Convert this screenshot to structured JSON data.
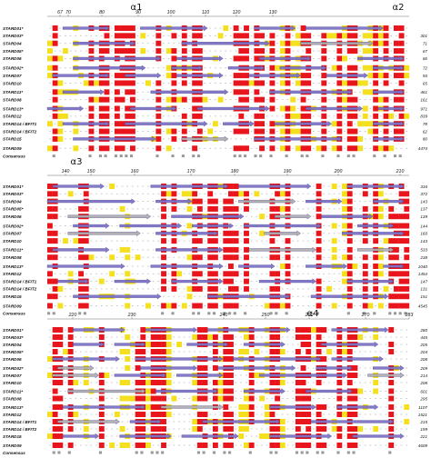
{
  "colors": {
    "identical": "#e8161c",
    "similar": "#f4e01e",
    "strand": "#7e74c8",
    "strand_edge": "#3d3584",
    "coil": "#b0b0b0",
    "text": "#111111"
  },
  "blocks": [
    {
      "ruler": [
        "67",
        "70",
        "80",
        "90",
        "100",
        "110",
        "120",
        "130"
      ],
      "helices": [
        "α1",
        "α2"
      ],
      "rows": [
        {
          "name": "STARD01*",
          "end": ""
        },
        {
          "name": "STARD03*",
          "end": "301"
        },
        {
          "name": "STARD04",
          "end": "71"
        },
        {
          "name": "STARD05*",
          "end": "67"
        },
        {
          "name": "STARD06",
          "end": "66"
        },
        {
          "name": "STARD02*",
          "end": "72"
        },
        {
          "name": "STARD07",
          "end": "93"
        },
        {
          "name": "STARD10",
          "end": "65"
        },
        {
          "name": "STARD11*",
          "end": "461"
        },
        {
          "name": "STARD08",
          "end": "161"
        },
        {
          "name": "STARD13*",
          "end": "971"
        },
        {
          "name": "STARD12",
          "end": "839"
        },
        {
          "name": "STARD14 / BFIT1",
          "end": "78"
        },
        {
          "name": "STARD14 / BFIT2",
          "end": "62"
        },
        {
          "name": "STARD15",
          "end": "80"
        },
        {
          "name": "STARD09",
          "end": "4474"
        },
        {
          "name": "Consensus",
          "end": ""
        }
      ]
    },
    {
      "ruler": [
        "140",
        "150",
        "160",
        "170",
        "180",
        "190",
        "200",
        "210"
      ],
      "helices": [
        "α3"
      ],
      "rows": [
        {
          "name": "STARD01*",
          "end": "316"
        },
        {
          "name": "STARD03*",
          "end": "372"
        },
        {
          "name": "STARD04",
          "end": "143"
        },
        {
          "name": "STARD05*",
          "end": "137"
        },
        {
          "name": "STARD06",
          "end": "139"
        },
        {
          "name": "STARD02*",
          "end": "144"
        },
        {
          "name": "STARD07",
          "end": "160"
        },
        {
          "name": "STARD10",
          "end": "143"
        },
        {
          "name": "STARD11*",
          "end": "533"
        },
        {
          "name": "STARD08",
          "end": "238"
        },
        {
          "name": "STARD13*",
          "end": "1040"
        },
        {
          "name": "STARD12",
          "end": "1454"
        },
        {
          "name": "STARD14 / BFIT1",
          "end": "147"
        },
        {
          "name": "STARD14 / BFIT2",
          "end": "131"
        },
        {
          "name": "STARD15",
          "end": "151"
        },
        {
          "name": "STARD09",
          "end": "4545"
        },
        {
          "name": "Consensus",
          "end": ""
        }
      ]
    },
    {
      "ruler": [
        "220",
        "230",
        "240",
        "250",
        "260",
        "270",
        "283"
      ],
      "helices": [
        "α4"
      ],
      "rows": [
        {
          "name": "STARD01*",
          "end": "280"
        },
        {
          "name": "STARD03*",
          "end": "445"
        },
        {
          "name": "STARD04",
          "end": "205"
        },
        {
          "name": "STARD05*",
          "end": "204"
        },
        {
          "name": "STARD06",
          "end": "208"
        },
        {
          "name": "STARD02*",
          "end": "209"
        },
        {
          "name": "STARD07",
          "end": "214"
        },
        {
          "name": "STARD10",
          "end": "208"
        },
        {
          "name": "STARD11*",
          "end": "601"
        },
        {
          "name": "STARD08",
          "end": "295"
        },
        {
          "name": "STARD13*",
          "end": "1107"
        },
        {
          "name": "STARD12",
          "end": "1521"
        },
        {
          "name": "STARD14 / BFIT1",
          "end": "215"
        },
        {
          "name": "STARD14 / BFIT2",
          "end": "199"
        },
        {
          "name": "STARD15",
          "end": "221"
        },
        {
          "name": "STARD09",
          "end": "4609"
        },
        {
          "name": "Consensus",
          "end": ""
        }
      ]
    }
  ]
}
